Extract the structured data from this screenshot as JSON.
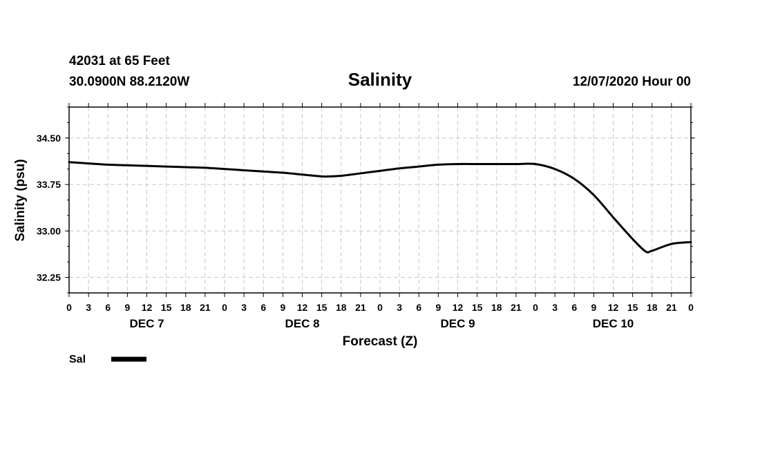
{
  "header": {
    "station": "42031 at 65 Feet",
    "coords": "30.0900N 88.2120W",
    "title": "Salinity",
    "timestamp": "12/07/2020 Hour 00"
  },
  "chart_data": {
    "type": "line",
    "title": "Salinity",
    "xlabel": "Forecast (Z)",
    "ylabel": "Salinity (psu)",
    "ylim": [
      32.0,
      35.0
    ],
    "yticks": [
      "34.50",
      "33.75",
      "33.00",
      "32.25"
    ],
    "ytick_values": [
      34.5,
      33.75,
      33.0,
      32.25
    ],
    "x_unit": "forecast hour",
    "xlim": [
      0,
      96
    ],
    "xtick_labels": [
      "0",
      "3",
      "6",
      "9",
      "12",
      "15",
      "18",
      "21",
      "0",
      "3",
      "6",
      "9",
      "12",
      "15",
      "18",
      "21",
      "0",
      "3",
      "6",
      "9",
      "12",
      "15",
      "18",
      "21",
      "0",
      "3",
      "6",
      "9",
      "12",
      "15",
      "18",
      "21",
      "0"
    ],
    "day_labels": [
      {
        "label": "DEC 7",
        "hour": 12
      },
      {
        "label": "DEC 8",
        "hour": 36
      },
      {
        "label": "DEC 9",
        "hour": 60
      },
      {
        "label": "DEC 10",
        "hour": 84
      }
    ],
    "grid": true,
    "series": [
      {
        "name": "Sal",
        "x": [
          0,
          3,
          6,
          9,
          12,
          15,
          18,
          21,
          24,
          27,
          30,
          33,
          36,
          39,
          40,
          42,
          45,
          48,
          51,
          54,
          57,
          60,
          63,
          66,
          69,
          72,
          75,
          78,
          81,
          84,
          87,
          89,
          90,
          93,
          96
        ],
        "values": [
          34.11,
          34.09,
          34.07,
          34.06,
          34.05,
          34.04,
          34.03,
          34.02,
          34.0,
          33.98,
          33.96,
          33.94,
          33.91,
          33.88,
          33.88,
          33.89,
          33.93,
          33.97,
          34.01,
          34.04,
          34.07,
          34.08,
          34.08,
          34.08,
          34.08,
          34.08,
          34.0,
          33.84,
          33.58,
          33.22,
          32.87,
          32.67,
          32.68,
          32.79,
          32.82
        ]
      }
    ],
    "legend": {
      "label": "Sal",
      "placement": "bottom-left"
    }
  }
}
